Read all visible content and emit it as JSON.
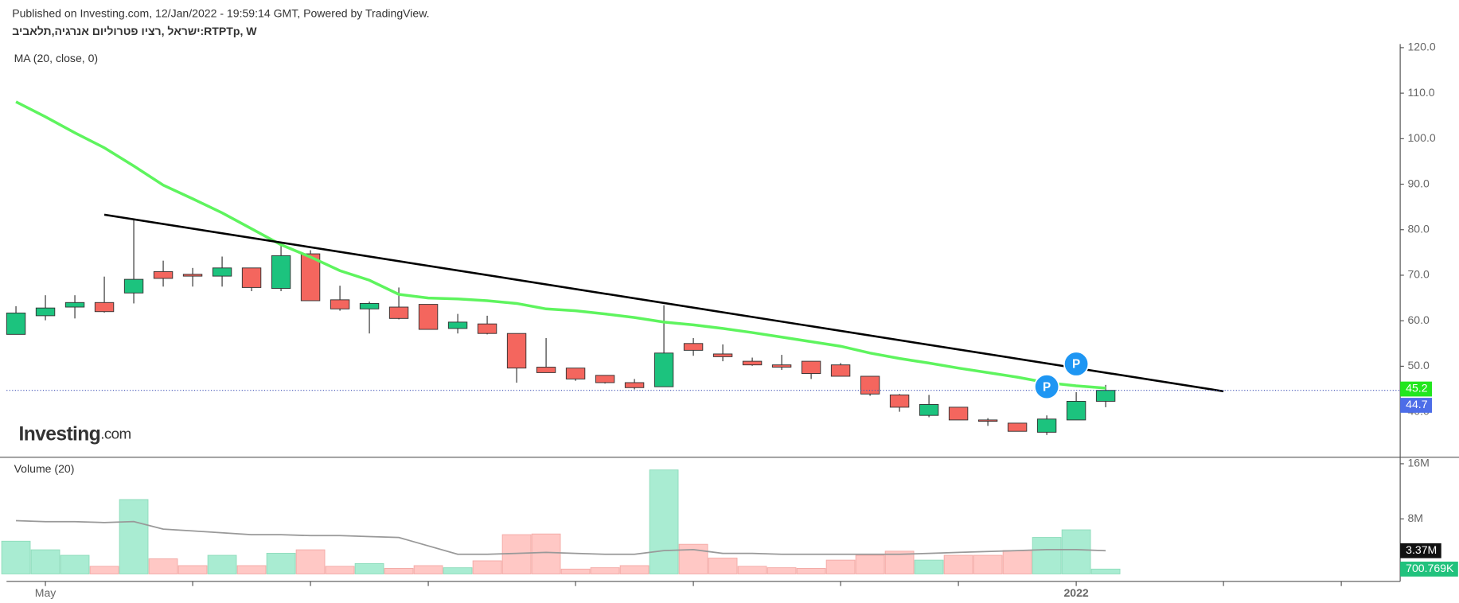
{
  "header": {
    "published": "Published on Investing.com, 12/Jan/2022 - 19:59:14 GMT, Powered by TradingView.",
    "symbol": "ישראל ,רציו פטרוליום אנרגיה,תלאביב:RTPTp, W"
  },
  "logo": {
    "brand": "Investing",
    "suffix": ".com"
  },
  "chart_data": {
    "type": "candlestick",
    "open": [
      57.0,
      61.1,
      63.0,
      64.0,
      66.1,
      70.8,
      70.2,
      69.8,
      71.6,
      67.1,
      74.7,
      64.6,
      62.6,
      63.0,
      63.6,
      58.3,
      59.3,
      57.2,
      49.8,
      49.6,
      48.0,
      46.4,
      45.5,
      55.0,
      52.7,
      51.1,
      50.3,
      51.1,
      50.3,
      47.8,
      43.7,
      39.2,
      41.0,
      38.2,
      37.5,
      35.5,
      38.2,
      42.3
    ],
    "high": [
      63.2,
      65.6,
      65.6,
      69.7,
      82.3,
      73.2,
      71.6,
      74.1,
      71.6,
      76.7,
      75.5,
      67.7,
      64.2,
      67.3,
      63.6,
      61.5,
      61.1,
      57.2,
      56.2,
      49.6,
      48.0,
      47.2,
      63.4,
      56.2,
      54.8,
      51.9,
      52.5,
      51.1,
      50.7,
      47.8,
      43.9,
      43.7,
      41.0,
      38.6,
      37.5,
      39.2,
      44.3,
      45.9
    ],
    "low": [
      57.0,
      60.1,
      60.5,
      61.8,
      63.8,
      67.5,
      67.5,
      67.5,
      66.5,
      66.5,
      64.4,
      62.2,
      57.2,
      60.3,
      58.1,
      57.2,
      57.0,
      46.4,
      48.6,
      46.8,
      46.2,
      44.9,
      45.5,
      52.3,
      51.1,
      50.1,
      49.2,
      47.2,
      47.8,
      43.5,
      40.0,
      38.8,
      38.2,
      36.9,
      35.7,
      34.9,
      38.2,
      41.0
    ],
    "close": [
      61.7,
      62.8,
      64.0,
      62.0,
      69.1,
      69.3,
      69.8,
      71.6,
      67.3,
      74.3,
      64.4,
      62.6,
      63.8,
      60.5,
      58.1,
      59.7,
      57.2,
      49.6,
      48.6,
      47.2,
      46.4,
      45.3,
      52.9,
      53.5,
      52.1,
      50.3,
      49.8,
      48.4,
      47.8,
      43.9,
      41.0,
      41.6,
      38.2,
      37.9,
      35.7,
      38.4,
      42.3,
      44.7
    ],
    "up_color": "#1cc37e",
    "down_color": "#f4665e",
    "ma": {
      "name": "MA (20, close, 0)",
      "color": "#5ef45e",
      "values": [
        108.1,
        104.8,
        101.3,
        98.0,
        94.0,
        89.8,
        86.8,
        83.7,
        80.2,
        76.7,
        74.0,
        71.0,
        68.9,
        65.8,
        65.0,
        64.8,
        64.4,
        63.8,
        62.6,
        62.2,
        61.5,
        60.7,
        59.7,
        59.1,
        58.3,
        57.4,
        56.4,
        55.4,
        54.4,
        52.9,
        51.7,
        50.7,
        49.6,
        48.6,
        47.6,
        46.4,
        45.7,
        45.2
      ]
    },
    "trendline": {
      "x": [
        3,
        41
      ],
      "y": [
        83.3,
        44.5
      ],
      "color": "#000000"
    },
    "markers": [
      {
        "x": 35,
        "y": 45.5,
        "label": "P"
      },
      {
        "x": 36,
        "y": 50.5,
        "label": "P"
      }
    ],
    "xlim": [
      -0.32,
      47
    ],
    "xticks": [
      1,
      6,
      10,
      14,
      19,
      23,
      28,
      32,
      36,
      41,
      45
    ],
    "xtick_labels": [
      {
        "value": 1,
        "label": "May"
      },
      {
        "value": 36,
        "label": "2022"
      }
    ],
    "ylim": [
      30.2,
      120.8
    ],
    "yticks": [
      {
        "value": 40,
        "label": "40.0"
      },
      {
        "value": 50,
        "label": "50.0"
      },
      {
        "value": 60,
        "label": "60.0"
      },
      {
        "value": 70,
        "label": "70.0"
      },
      {
        "value": 80,
        "label": "80.0"
      },
      {
        "value": 90,
        "label": "90.0"
      },
      {
        "value": 100,
        "label": "100.0"
      },
      {
        "value": 110,
        "label": "110.0"
      },
      {
        "value": 120,
        "label": "120.0"
      }
    ],
    "volume": {
      "name": "Volume (20)",
      "values": [
        4.75,
        3.5,
        2.7,
        1.1,
        10.8,
        2.2,
        1.2,
        2.7,
        1.2,
        3.0,
        3.5,
        1.1,
        1.5,
        0.8,
        1.2,
        0.9,
        1.9,
        5.7,
        5.8,
        0.7,
        0.9,
        1.2,
        15.1,
        4.3,
        2.3,
        1.1,
        0.9,
        0.8,
        2.0,
        2.7,
        3.3,
        2.0,
        2.7,
        2.7,
        3.4,
        5.3,
        6.4,
        0.700769
      ],
      "last_label": "700.769K",
      "up_color": "#a9ecd2",
      "down_color": "#ffc8c5",
      "ma": {
        "color": "#999999",
        "values": [
          7.73,
          7.59,
          7.59,
          7.46,
          7.6,
          6.51,
          6.24,
          5.97,
          5.69,
          5.69,
          5.56,
          5.56,
          5.42,
          5.29,
          4.07,
          2.85,
          2.85,
          2.98,
          3.12,
          2.98,
          2.85,
          2.85,
          3.39,
          3.53,
          2.98,
          2.98,
          2.85,
          2.85,
          2.85,
          2.85,
          2.85,
          2.98,
          3.12,
          3.25,
          3.39,
          3.53,
          3.53,
          3.37
        ],
        "last_label": "3.37M"
      },
      "ylim": [
        -0.95,
        16.8
      ],
      "yticks": [
        {
          "value": 8,
          "label": "8M"
        },
        {
          "value": 16,
          "label": "16M"
        }
      ]
    }
  }
}
